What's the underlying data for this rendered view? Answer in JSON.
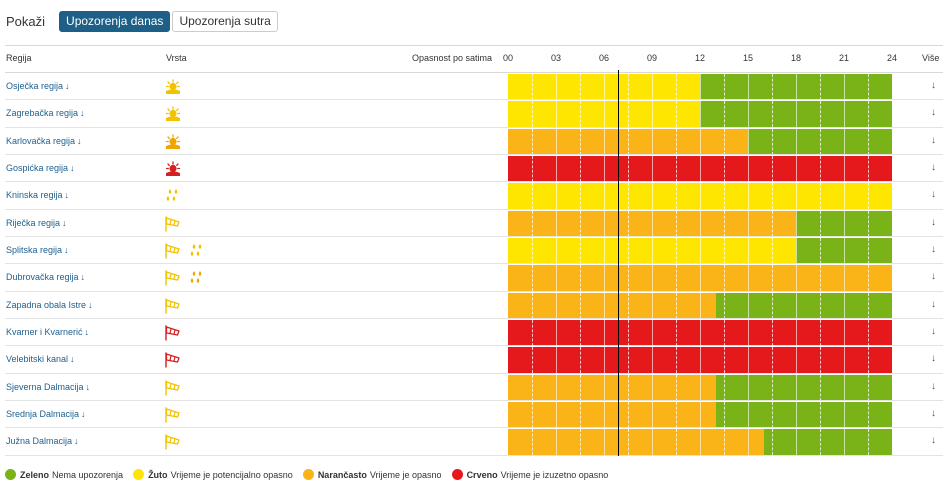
{
  "header": {
    "show_label": "Pokaži",
    "tabs": [
      {
        "label": "Upozorenja danas",
        "active": true
      },
      {
        "label": "Upozorenja sutra",
        "active": false
      }
    ]
  },
  "table": {
    "col_region": "Regija",
    "col_type": "Vrsta",
    "col_danger": "Opasnost po satima",
    "col_more": "Više",
    "hours": [
      "00",
      "03",
      "06",
      "09",
      "12",
      "15",
      "18",
      "21",
      "24"
    ],
    "current_time_hour": 6.9,
    "rows": [
      {
        "region": "Osječka regija",
        "icons": [
          "heat-icon"
        ],
        "icon_color": "yellow",
        "segments": [
          {
            "from": 0,
            "to": 12,
            "level": "yellow"
          },
          {
            "from": 12,
            "to": 24,
            "level": "green"
          }
        ]
      },
      {
        "region": "Zagrebačka regija",
        "icons": [
          "heat-icon"
        ],
        "icon_color": "yellow",
        "segments": [
          {
            "from": 0,
            "to": 12,
            "level": "yellow"
          },
          {
            "from": 12,
            "to": 24,
            "level": "green"
          }
        ]
      },
      {
        "region": "Karlovačka regija",
        "icons": [
          "heat-icon"
        ],
        "icon_color": "orange",
        "segments": [
          {
            "from": 0,
            "to": 15,
            "level": "orange"
          },
          {
            "from": 15,
            "to": 24,
            "level": "green"
          }
        ]
      },
      {
        "region": "Gospićka regija",
        "icons": [
          "heat-icon"
        ],
        "icon_color": "red",
        "segments": [
          {
            "from": 0,
            "to": 24,
            "level": "red"
          }
        ]
      },
      {
        "region": "Kninska regija",
        "icons": [
          "rain-icon"
        ],
        "icon_color": "yellow",
        "segments": [
          {
            "from": 0,
            "to": 24,
            "level": "yellow"
          }
        ]
      },
      {
        "region": "Riječka regija",
        "icons": [
          "wind-icon"
        ],
        "icon_color": "yellow",
        "segments": [
          {
            "from": 0,
            "to": 18,
            "level": "orange"
          },
          {
            "from": 18,
            "to": 24,
            "level": "green"
          }
        ]
      },
      {
        "region": "Splitska regija",
        "icons": [
          "wind-icon",
          "rain-icon"
        ],
        "icon_color": "yellow",
        "segments": [
          {
            "from": 0,
            "to": 18,
            "level": "yellow"
          },
          {
            "from": 18,
            "to": 24,
            "level": "green"
          }
        ]
      },
      {
        "region": "Dubrovačka regija",
        "icons": [
          "wind-icon",
          "rain-icon"
        ],
        "icon_color": "yellow-orange",
        "segments": [
          {
            "from": 0,
            "to": 24,
            "level": "orange"
          }
        ]
      },
      {
        "region": "Zapadna obala Istre",
        "icons": [
          "wind-icon"
        ],
        "icon_color": "yellow",
        "segments": [
          {
            "from": 0,
            "to": 13,
            "level": "orange"
          },
          {
            "from": 13,
            "to": 24,
            "level": "green"
          }
        ]
      },
      {
        "region": "Kvarner i Kvarnerić",
        "icons": [
          "wind-icon"
        ],
        "icon_color": "red",
        "segments": [
          {
            "from": 0,
            "to": 24,
            "level": "red"
          }
        ]
      },
      {
        "region": "Velebitski kanal",
        "icons": [
          "wind-icon"
        ],
        "icon_color": "red",
        "segments": [
          {
            "from": 0,
            "to": 24,
            "level": "red"
          }
        ]
      },
      {
        "region": "Sjeverna Dalmacija",
        "icons": [
          "wind-icon"
        ],
        "icon_color": "yellow",
        "segments": [
          {
            "from": 0,
            "to": 13,
            "level": "orange"
          },
          {
            "from": 13,
            "to": 24,
            "level": "green"
          }
        ]
      },
      {
        "region": "Srednja Dalmacija",
        "icons": [
          "wind-icon"
        ],
        "icon_color": "yellow",
        "segments": [
          {
            "from": 0,
            "to": 13,
            "level": "orange"
          },
          {
            "from": 13,
            "to": 24,
            "level": "green"
          }
        ]
      },
      {
        "region": "Južna Dalmacija",
        "icons": [
          "wind-icon"
        ],
        "icon_color": "yellow",
        "segments": [
          {
            "from": 0,
            "to": 16,
            "level": "orange"
          },
          {
            "from": 16,
            "to": 24,
            "level": "green"
          }
        ]
      }
    ]
  },
  "legend": [
    {
      "name": "Zeleno",
      "text": "Nema upozorenja",
      "level": "green"
    },
    {
      "name": "Žuto",
      "text": "Vrijeme je potencijalno opasno",
      "level": "yellow"
    },
    {
      "name": "Narančasto",
      "text": "Vrijeme je opasno",
      "level": "orange"
    },
    {
      "name": "Crveno",
      "text": "Vrijeme je izuzetno opasno",
      "level": "red"
    }
  ],
  "colors": {
    "green": "#7ab317",
    "yellow": "#ffe600",
    "orange": "#fbb417",
    "red": "#e5191c",
    "icon_yellow": "#f2c200",
    "icon_orange": "#f0a500",
    "icon_red": "#d42020",
    "link": "#1f6190",
    "accent": "#1d5f86"
  }
}
